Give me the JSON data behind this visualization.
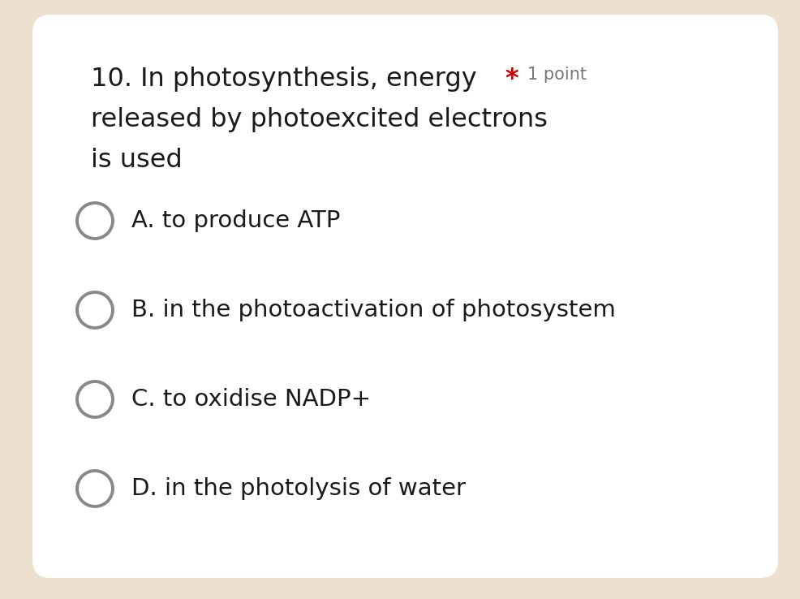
{
  "background_color": "#ede0ce",
  "card_color": "#ffffff",
  "question_line1": "10. In photosynthesis, energy",
  "question_line2": "released by photoexcited electrons",
  "question_line3": "is used",
  "star_text": "*",
  "point_text": "1 point",
  "options": [
    "A. to produce ATP",
    "B. in the photoactivation of photosystem",
    "C. to oxidise NADP+",
    "D. in the photolysis of water"
  ],
  "text_color": "#1a1a1a",
  "star_color": "#cc0000",
  "point_color": "#777777",
  "circle_edge_color": "#888888",
  "question_fontsize": 23,
  "option_fontsize": 21,
  "point_fontsize": 15,
  "fig_width": 9.87,
  "fig_height": 7.38,
  "dpi": 100
}
